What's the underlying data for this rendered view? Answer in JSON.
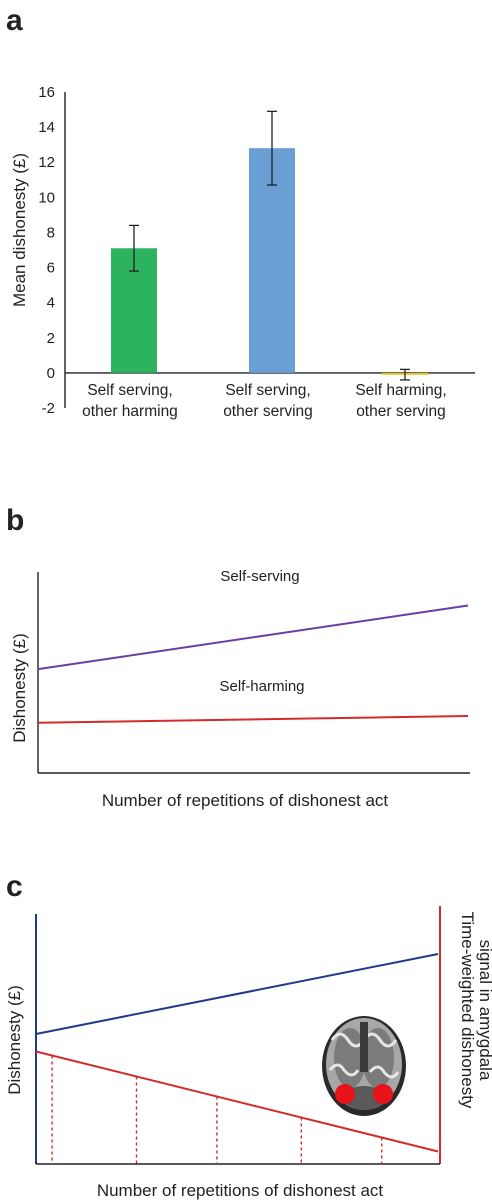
{
  "panels": {
    "a": "a",
    "b": "b",
    "c": "c"
  },
  "chart_data": [
    {
      "type": "bar",
      "panel": "a",
      "categories": [
        [
          "Self serving,",
          "other harming"
        ],
        [
          "Self serving,",
          "other serving"
        ],
        [
          "Self harming,",
          "other serving"
        ]
      ],
      "values": [
        7.1,
        12.8,
        -0.1
      ],
      "errors": [
        1.3,
        2.1,
        0.3
      ],
      "colors": [
        "#2db35e",
        "#6a9fd6",
        "#e8c62a"
      ],
      "ylabel": "Mean dishonesty (£)",
      "ylim": [
        -2,
        16
      ],
      "yticks": [
        "-2",
        "0",
        "2",
        "4",
        "6",
        "8",
        "10",
        "12",
        "14",
        "16"
      ],
      "grid": false
    },
    {
      "type": "line",
      "panel": "b",
      "xlabel": "Number of repetitions of dishonest act",
      "ylabel": "Dishonesty (£)",
      "x": [
        0,
        1
      ],
      "series": [
        {
          "name": "Self-serving",
          "values": [
            0.62,
            1.0
          ],
          "color": "#6a3fa0"
        },
        {
          "name": "Self-harming",
          "values": [
            0.3,
            0.34
          ],
          "color": "#d42a2a"
        }
      ],
      "ylim": [
        0,
        1.2
      ]
    },
    {
      "type": "line",
      "panel": "c",
      "xlabel": "Number of repetitions of dishonest act",
      "ylabel": "Dishonesty (£)",
      "ylabel_right": [
        "Time-weighted dishonesty",
        "signal in amygdala"
      ],
      "x": [
        0,
        1
      ],
      "series": [
        {
          "values": [
            0.52,
            0.84
          ],
          "color": "#1f3a8a"
        },
        {
          "values": [
            0.45,
            0.05
          ],
          "color": "#d42a2a"
        }
      ],
      "drop_lines_x": [
        0.04,
        0.25,
        0.45,
        0.66,
        0.86
      ],
      "ylim": [
        0,
        1.0
      ]
    }
  ]
}
